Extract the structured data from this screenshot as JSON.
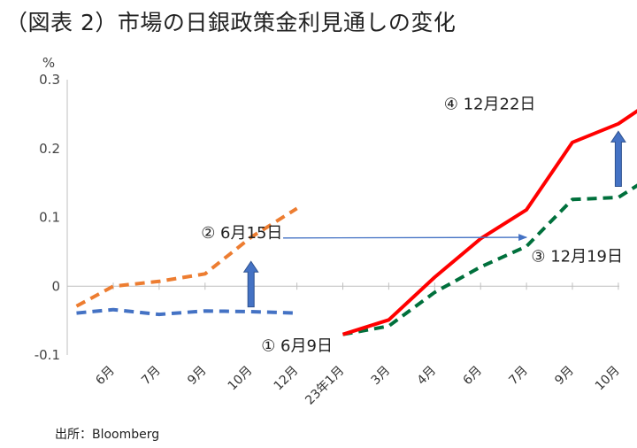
{
  "title": "（図表 2）市場の日銀政策金利見通しの変化",
  "source": "出所：Bloomberg",
  "chart_data": {
    "type": "line",
    "title": "（図表 2）市場の日銀政策金利見通しの変化",
    "ylabel": "%",
    "ylim": [
      -0.1,
      0.3
    ],
    "yticks": [
      -0.1,
      0,
      0.1,
      0.2,
      0.3
    ],
    "ytick_labels": [
      "-0.1",
      "0",
      "0.1",
      "0.2",
      "0.3"
    ],
    "categories": [
      "6月",
      "7月",
      "9月",
      "10月",
      "12月",
      "23年1月",
      "3月",
      "4月",
      "6月",
      "7月",
      "9月",
      "10月"
    ],
    "grid": false,
    "series": [
      {
        "name": "① 6月9日",
        "color": "#4472C4",
        "dash": true,
        "x": [
          -0.8,
          0,
          1,
          2,
          3,
          4
        ],
        "values": [
          -0.039,
          -0.034,
          -0.041,
          -0.036,
          -0.037,
          -0.039
        ]
      },
      {
        "name": "② 6月15日",
        "color": "#ED7D31",
        "dash": true,
        "x": [
          -0.8,
          0,
          1,
          2,
          3,
          4
        ],
        "values": [
          -0.029,
          0.0,
          0.007,
          0.018,
          0.071,
          0.113
        ]
      },
      {
        "name": "③ 12月19日",
        "color": "#00703C",
        "dash": true,
        "x": [
          5,
          6,
          7,
          8,
          9,
          10,
          11,
          12
        ],
        "values": [
          -0.07,
          -0.058,
          -0.009,
          0.028,
          0.058,
          0.126,
          0.129,
          0.171
        ]
      },
      {
        "name": "④ 12月22日",
        "color": "#FF0000",
        "dash": false,
        "x": [
          5,
          6,
          7,
          8,
          9,
          10,
          11,
          12
        ],
        "values": [
          -0.07,
          -0.049,
          0.013,
          0.069,
          0.111,
          0.209,
          0.236,
          0.281
        ]
      }
    ],
    "annotations": [
      {
        "text": "① 6月9日",
        "label_pos": [
          4.0,
          -0.094
        ]
      },
      {
        "text": "② 6月15日",
        "label_pos": [
          2.8,
          0.07
        ]
      },
      {
        "text": "③ 12月19日",
        "label_pos": [
          10.1,
          0.036
        ]
      },
      {
        "text": "④ 12月22日",
        "label_pos": [
          8.2,
          0.257
        ]
      }
    ],
    "arrows": [
      {
        "name": "up-arrow-jun",
        "color": "#4472C4",
        "from": [
          3.0,
          -0.03
        ],
        "to": [
          3.0,
          0.036
        ]
      },
      {
        "name": "up-arrow-dec",
        "color": "#4472C4",
        "from": [
          11.0,
          0.145
        ],
        "to": [
          11.0,
          0.225
        ]
      },
      {
        "name": "shift-arrow",
        "color": "#4472C4",
        "from": [
          3.7,
          0.07
        ],
        "to": [
          9.0,
          0.071
        ]
      }
    ]
  }
}
